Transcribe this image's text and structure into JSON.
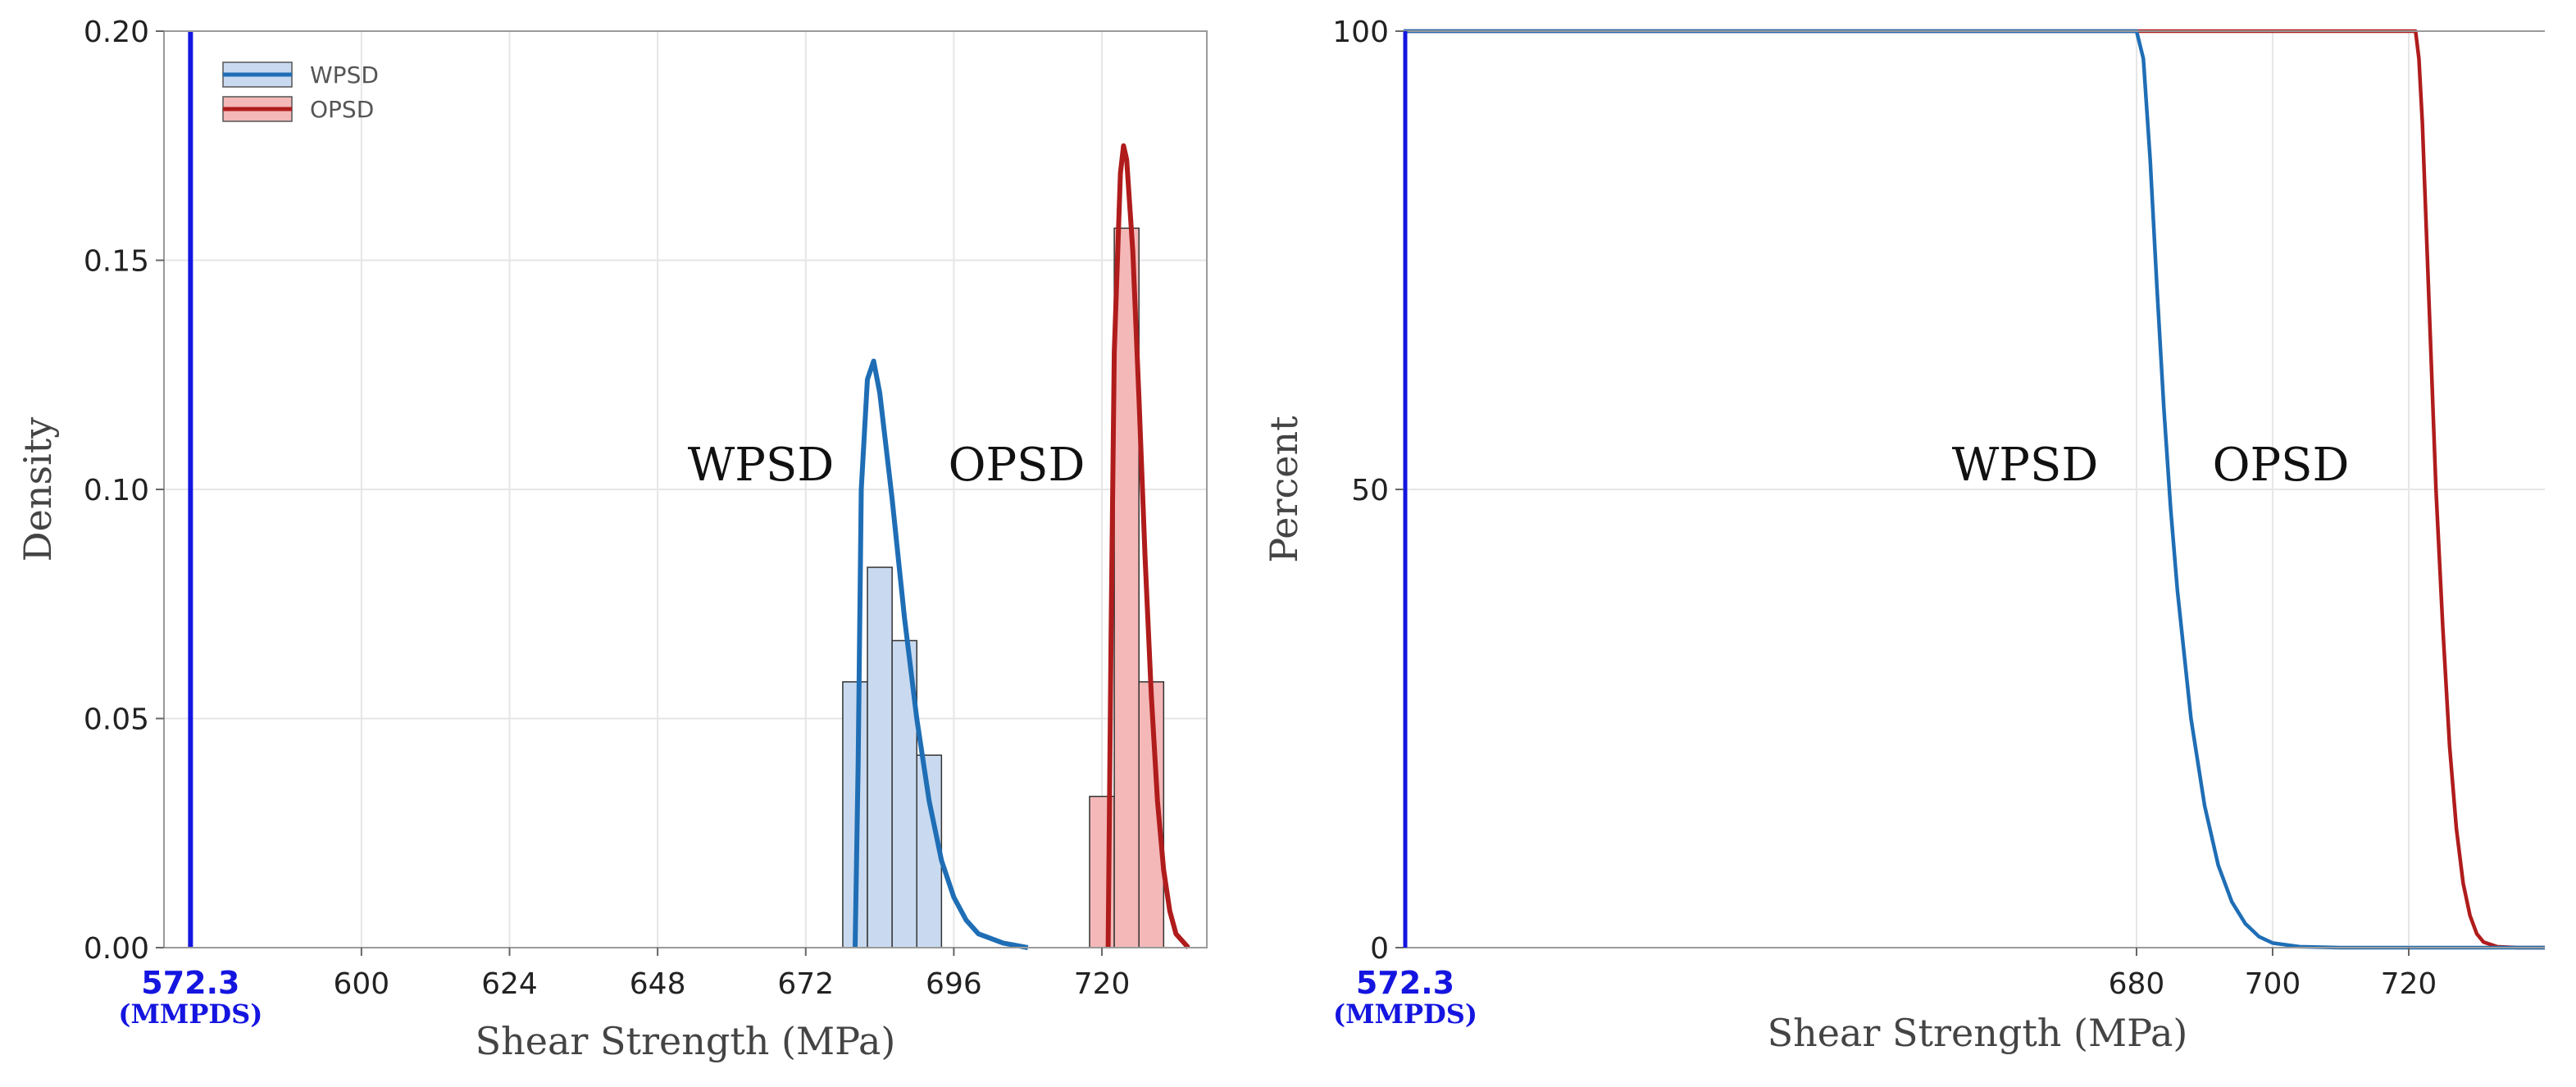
{
  "chart_data": [
    {
      "type": "histogram_with_density",
      "xlabel": "Shear Strength (MPa)",
      "ylabel": "Density",
      "xlim": [
        568,
        737
      ],
      "ylim": [
        0,
        0.2
      ],
      "x_ticks": [
        600,
        624,
        648,
        672,
        696,
        720
      ],
      "y_ticks": [
        0.0,
        0.05,
        0.1,
        0.15,
        0.2
      ],
      "y_tick_labels": [
        "0.00",
        "0.05",
        "0.10",
        "0.15",
        "0.20"
      ],
      "grid": true,
      "legend": {
        "placement": "top-left",
        "entries": [
          "WPSD",
          "OPSD"
        ]
      },
      "reference_line": {
        "x": 572.3,
        "label": "572.3",
        "source": "(MMPDS)",
        "color": "#1515e0"
      },
      "series": [
        {
          "name": "WPSD",
          "label": "WPSD",
          "line_color": "#1f6eb5",
          "fill_color": "#c9daf0",
          "bins": [
            {
              "x0": 678,
              "x1": 682,
              "density": 0.058
            },
            {
              "x0": 682,
              "x1": 686,
              "density": 0.083
            },
            {
              "x0": 686,
              "x1": 690,
              "density": 0.067
            },
            {
              "x0": 690,
              "x1": 694,
              "density": 0.042
            }
          ],
          "curve": [
            [
              680,
              0
            ],
            [
              680.5,
              0.04
            ],
            [
              681,
              0.1
            ],
            [
              682,
              0.124
            ],
            [
              683,
              0.128
            ],
            [
              684,
              0.121
            ],
            [
              686,
              0.098
            ],
            [
              688,
              0.072
            ],
            [
              690,
              0.05
            ],
            [
              692,
              0.032
            ],
            [
              694,
              0.019
            ],
            [
              696,
              0.011
            ],
            [
              698,
              0.006
            ],
            [
              700,
              0.003
            ],
            [
              704,
              0.001
            ],
            [
              708,
              0
            ]
          ]
        },
        {
          "name": "OPSD",
          "label": "OPSD",
          "line_color": "#b01c1c",
          "fill_color": "#f4b8b8",
          "bins": [
            {
              "x0": 718,
              "x1": 722,
              "density": 0.033
            },
            {
              "x0": 722,
              "x1": 726,
              "density": 0.157
            },
            {
              "x0": 726,
              "x1": 730,
              "density": 0.058
            }
          ],
          "curve": [
            [
              721,
              0
            ],
            [
              721.5,
              0.07
            ],
            [
              722,
              0.13
            ],
            [
              723,
              0.169
            ],
            [
              723.5,
              0.175
            ],
            [
              724,
              0.172
            ],
            [
              725,
              0.152
            ],
            [
              726,
              0.12
            ],
            [
              727,
              0.085
            ],
            [
              728,
              0.055
            ],
            [
              729,
              0.032
            ],
            [
              730,
              0.017
            ],
            [
              731,
              0.008
            ],
            [
              732,
              0.003
            ],
            [
              734,
              0
            ]
          ]
        }
      ]
    },
    {
      "type": "line",
      "xlabel": "Shear Strength (MPa)",
      "ylabel": "Percent",
      "xlim": [
        572.3,
        740
      ],
      "ylim": [
        0,
        100
      ],
      "x_ticks": [
        680,
        700,
        720
      ],
      "y_ticks": [
        0,
        50,
        100
      ],
      "grid": true,
      "reference_line": {
        "x": 572.3,
        "label": "572.3",
        "source": "(MMPDS)",
        "color": "#1515e0"
      },
      "series": [
        {
          "name": "WPSD",
          "label": "WPSD",
          "color": "#1f6eb5",
          "points": [
            [
              572.3,
              100
            ],
            [
              680,
              100
            ],
            [
              681,
              97
            ],
            [
              682,
              86
            ],
            [
              683,
              72
            ],
            [
              684,
              59
            ],
            [
              685,
              48
            ],
            [
              686,
              39
            ],
            [
              688,
              25
            ],
            [
              690,
              15.5
            ],
            [
              692,
              9
            ],
            [
              694,
              5
            ],
            [
              696,
              2.6
            ],
            [
              698,
              1.2
            ],
            [
              700,
              0.5
            ],
            [
              704,
              0.1
            ],
            [
              710,
              0
            ],
            [
              740,
              0
            ]
          ]
        },
        {
          "name": "OPSD",
          "label": "OPSD",
          "color": "#b01c1c",
          "points": [
            [
              572.3,
              100
            ],
            [
              721,
              100
            ],
            [
              721.5,
              97
            ],
            [
              722,
              90
            ],
            [
              723,
              70
            ],
            [
              724,
              50
            ],
            [
              725,
              35
            ],
            [
              726,
              22
            ],
            [
              727,
              13
            ],
            [
              728,
              7
            ],
            [
              729,
              3.5
            ],
            [
              730,
              1.5
            ],
            [
              731,
              0.6
            ],
            [
              733,
              0.1
            ],
            [
              736,
              0
            ],
            [
              740,
              0
            ]
          ]
        }
      ]
    }
  ]
}
